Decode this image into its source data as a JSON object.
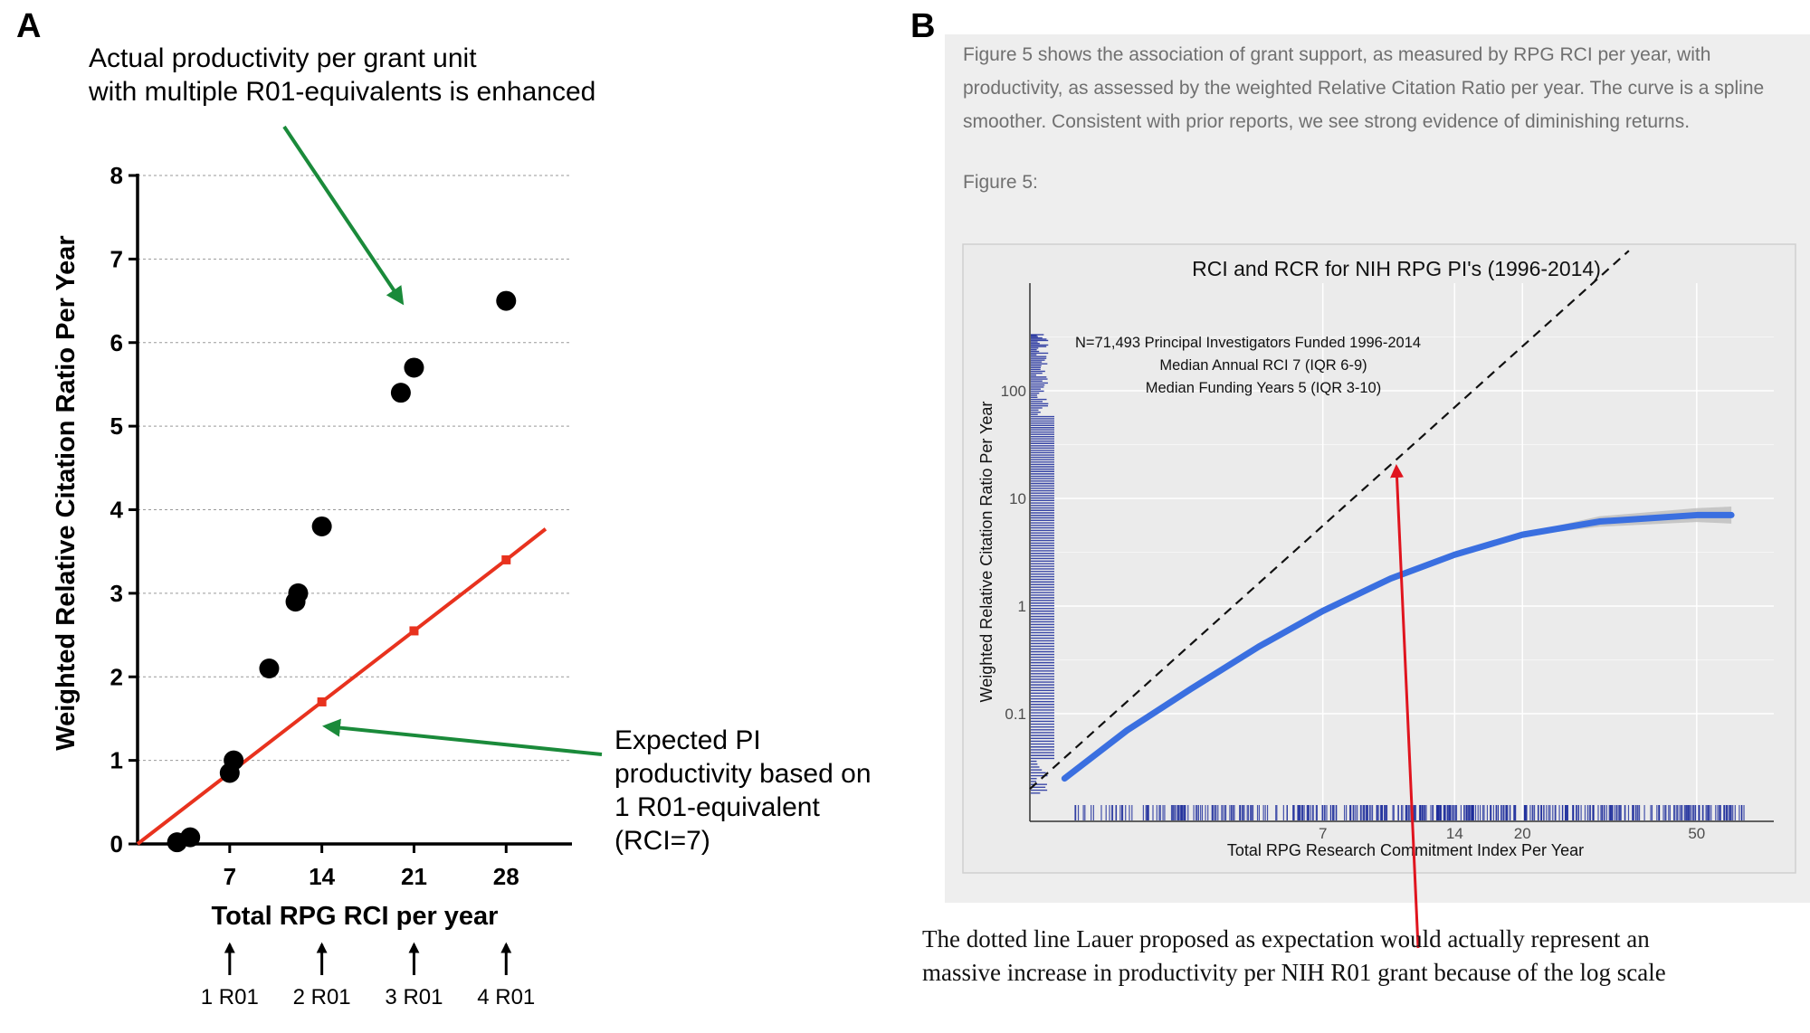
{
  "panel_a": {
    "letter": "A",
    "annotation_top": [
      "Actual productivity per grant unit",
      "with multiple R01-equivalents is enhanced"
    ],
    "annotation_right": [
      "Expected PI",
      "productivity based on",
      "1 R01-equivalent",
      "(RCI=7)"
    ],
    "r01_labels": [
      "1 R01",
      "2 R01",
      "3 R01",
      "4 R01"
    ],
    "colors": {
      "points": "#000000",
      "expected_line": "#e8321e",
      "arrow": "#1a8a3a"
    }
  },
  "panel_b": {
    "letter": "B",
    "excerpt": "Figure 5 shows the association of grant support, as measured by RPG RCI per year, with productivity, as assessed by the weighted Relative Citation Ratio per year. The curve is a spline smoother. Consistent with prior reports, we see strong evidence of diminishing returns.",
    "figure_label": "Figure 5:",
    "caption_lines": [
      "The dotted line Lauer proposed as expectation would actually represent an",
      "massive increase in productivity per NIH R01 grant because of the log scale"
    ],
    "colors": {
      "smoother": "#3a6fe0",
      "rug": "#1a2a9a",
      "arrow": "#e0141e",
      "background": "#eeeeee"
    }
  },
  "chart_data": [
    {
      "type": "scatter",
      "title": "",
      "xlabel": "Total RPG RCI per year",
      "ylabel": "Weighted Relative Citation Ratio Per Year",
      "xlim": [
        0,
        33
      ],
      "ylim": [
        0,
        8
      ],
      "x_ticks": [
        7,
        14,
        21,
        28
      ],
      "y_ticks": [
        0,
        1,
        2,
        3,
        4,
        5,
        6,
        7,
        8
      ],
      "grid": "horizontal dotted",
      "series": [
        {
          "name": "",
          "points": [
            [
              3,
              0.02
            ],
            [
              4,
              0.08
            ],
            [
              7,
              0.85
            ],
            [
              7.3,
              1.0
            ],
            [
              10,
              2.1
            ],
            [
              12,
              2.9
            ],
            [
              12.2,
              3.0
            ],
            [
              14,
              3.8
            ],
            [
              20,
              5.4
            ],
            [
              21,
              5.7
            ],
            [
              28,
              6.5
            ]
          ]
        }
      ],
      "expected_line": {
        "x": [
          0,
          7,
          14,
          21,
          28,
          31
        ],
        "y": [
          0,
          0.85,
          1.7,
          2.55,
          3.4,
          3.77
        ]
      }
    },
    {
      "type": "line",
      "title": "RCI and RCR for NIH RPG PI's (1996-2014)",
      "xlabel": "Total RPG Research Commitment Index Per Year",
      "ylabel": "Weighted Relative Citation Ratio Per Year",
      "x_scale": "log",
      "y_scale": "log",
      "xlim": [
        1.5,
        75
      ],
      "ylim": [
        0.01,
        1000
      ],
      "x_ticks": [
        7,
        14,
        20,
        50
      ],
      "y_ticks": [
        0.1,
        1,
        10,
        100
      ],
      "x_tick_labels": [
        "7",
        "14",
        "20",
        "50"
      ],
      "y_tick_labels": [
        "0.1",
        "1",
        "10",
        "100"
      ],
      "grid": true,
      "annotations": [
        "N=71,493 Principal Investigators Funded 1996-2014",
        "Median Annual RCI 7 (IQR 6-9)",
        "Median Funding Years 5 (IQR 3-10)"
      ],
      "smoother": {
        "x": [
          1.8,
          2.5,
          3.5,
          5,
          7,
          10,
          14,
          20,
          30,
          50,
          60
        ],
        "y": [
          0.025,
          0.07,
          0.17,
          0.42,
          0.9,
          1.8,
          3.0,
          4.6,
          6.1,
          7.0,
          7.0
        ]
      },
      "reference_line": {
        "x": [
          1.5,
          35
        ],
        "y": [
          0.02,
          2000
        ]
      }
    }
  ]
}
